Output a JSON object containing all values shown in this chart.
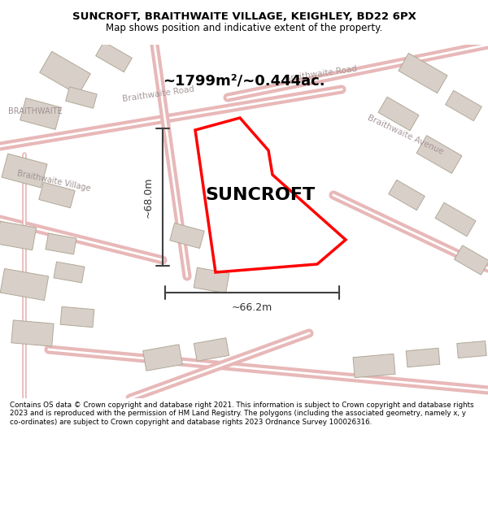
{
  "title_line1": "SUNCROFT, BRAITHWAITE VILLAGE, KEIGHLEY, BD22 6PX",
  "title_line2": "Map shows position and indicative extent of the property.",
  "property_label": "SUNCROFT",
  "area_label": "~1799m²/~0.444ac.",
  "dim_vertical": "~68.0m",
  "dim_horizontal": "~66.2m",
  "footer_text": "Contains OS data © Crown copyright and database right 2021. This information is subject to Crown copyright and database rights 2023 and is reproduced with the permission of HM Land Registry. The polygons (including the associated geometry, namely x, y co-ordinates) are subject to Crown copyright and database rights 2023 Ordnance Survey 100026316.",
  "bg_color": "#f0eeec",
  "map_bg": "#f5f3f0",
  "road_color": "#e8b8b8",
  "building_color": "#d8d0c8",
  "highlight_color": "#ff0000",
  "road_label_color": "#a09090",
  "title_bg": "#ffffff"
}
